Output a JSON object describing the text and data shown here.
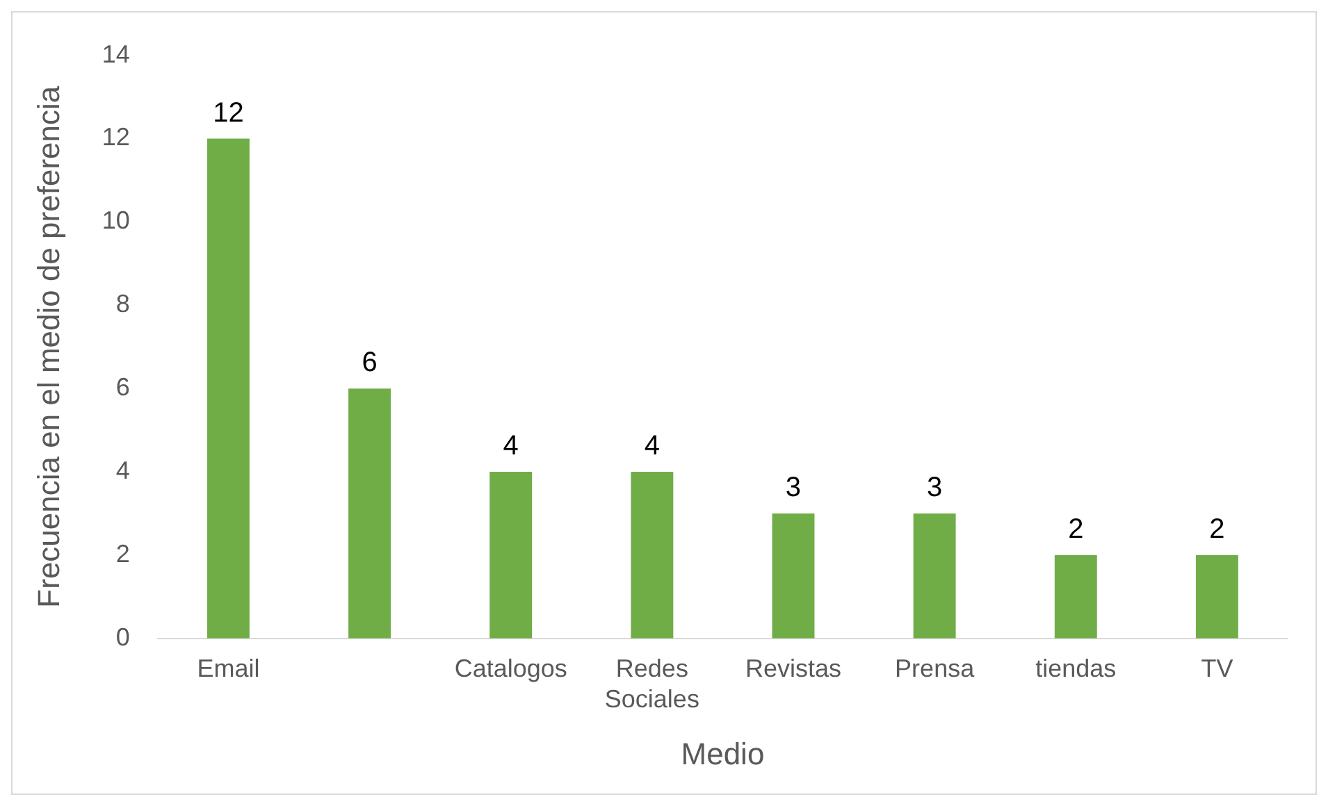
{
  "chart_data": {
    "type": "bar",
    "xlabel": "Medio",
    "ylabel": "Frecuencia en el medio de preferencia",
    "categories": [
      "Email",
      null,
      "Catalogos",
      "Redes Sociales",
      "Revistas",
      "Prensa",
      "tiendas",
      "TV"
    ],
    "values": [
      12,
      6,
      4,
      4,
      3,
      3,
      2,
      2
    ],
    "color": "#70ad47",
    "ylim": [
      0,
      14
    ],
    "yticks": [
      0,
      2,
      4,
      6,
      8,
      10,
      12,
      14
    ],
    "grid": false,
    "data_labels": true,
    "legend": false
  }
}
